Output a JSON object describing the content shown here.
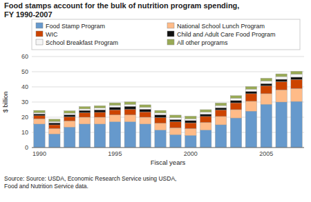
{
  "chart_data": {
    "type": "bar",
    "stacked": true,
    "title": "Food stamps account for the bulk of nutrition program spending,\nFY 1990-2007",
    "ylabel": "$ billion",
    "xlabel": "Fiscal years",
    "source": "Source:  Source: USDA, Economic Research Service using USDA,\nFood and Nutrition Service data.",
    "categories": [
      "1990",
      null,
      null,
      null,
      null,
      "1995",
      null,
      null,
      null,
      null,
      "2000",
      null,
      null,
      null,
      null,
      "2005",
      null,
      null
    ],
    "series": [
      {
        "name": "Food Stamp Program",
        "color": "#6699cc",
        "values": [
          15.5,
          9.0,
          13.5,
          15.5,
          15.5,
          17.0,
          17.0,
          15.5,
          11.5,
          8.5,
          8.0,
          11.5,
          15.0,
          19.5,
          24.0,
          28.5,
          30.0,
          30.4
        ]
      },
      {
        "name": "National School Lunch Program",
        "color": "#ffbb88",
        "values": [
          3.5,
          3.5,
          4.0,
          4.5,
          4.5,
          4.5,
          4.5,
          4.5,
          4.5,
          4.5,
          4.5,
          5.0,
          5.5,
          5.5,
          6.5,
          7.0,
          8.0,
          8.5
        ]
      },
      {
        "name": "WIC",
        "color": "#cc4400",
        "values": [
          2.0,
          2.5,
          2.8,
          3.0,
          3.2,
          3.4,
          3.7,
          3.5,
          3.8,
          4.0,
          3.8,
          4.0,
          4.3,
          4.5,
          5.0,
          5.2,
          5.5,
          6.0
        ]
      },
      {
        "name": "Child and Adult Care Food Program",
        "color": "#111111",
        "values": [
          1.2,
          1.3,
          1.4,
          1.5,
          1.7,
          1.7,
          2.0,
          1.8,
          1.8,
          1.5,
          1.5,
          1.5,
          1.5,
          1.5,
          1.5,
          1.5,
          1.5,
          1.5
        ]
      },
      {
        "name": "School Breakfast Program",
        "color": "#f5f5f5",
        "values": [
          0.8,
          0.9,
          1.0,
          1.0,
          1.2,
          1.2,
          1.2,
          1.2,
          1.2,
          1.2,
          1.2,
          1.3,
          1.4,
          1.5,
          1.5,
          1.7,
          1.8,
          1.9
        ]
      },
      {
        "name": "All other programs",
        "color": "#99aa55",
        "values": [
          1.5,
          1.5,
          1.5,
          1.5,
          1.5,
          1.7,
          1.7,
          1.7,
          1.7,
          1.7,
          1.7,
          1.7,
          1.7,
          1.7,
          1.7,
          1.8,
          1.8,
          2.0
        ]
      }
    ],
    "ylim": [
      0,
      60
    ],
    "yticks": [
      0,
      10,
      20,
      30,
      40,
      50,
      60
    ],
    "grid": true,
    "legend": "top"
  }
}
